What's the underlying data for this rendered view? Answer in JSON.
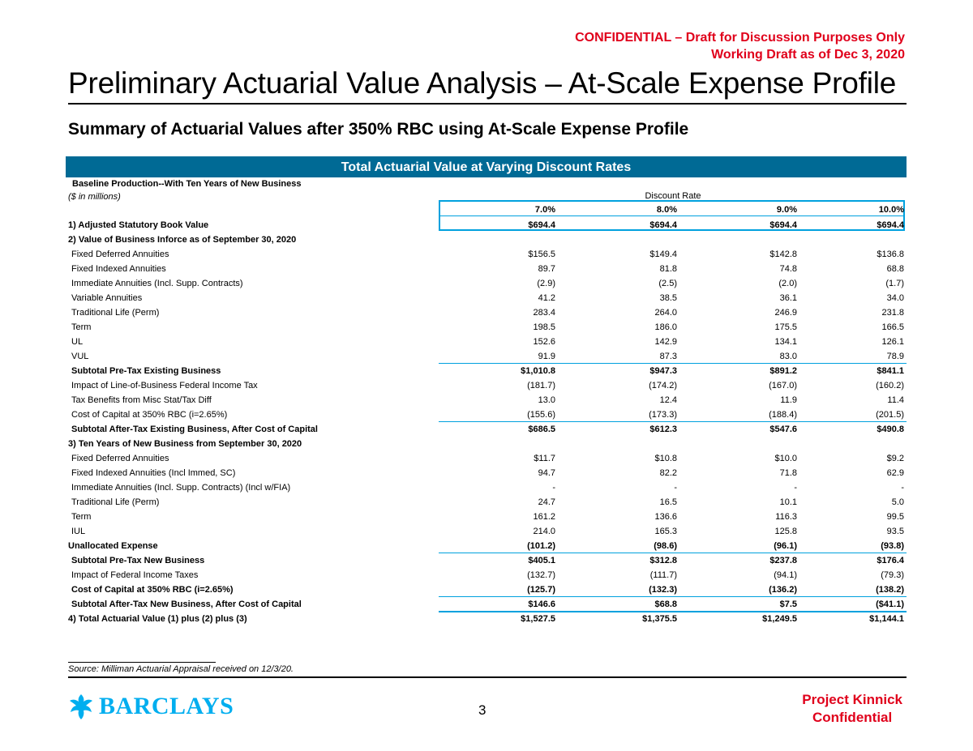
{
  "confidential": {
    "line1": "CONFIDENTIAL – Draft for Discussion Purposes Only",
    "line2": "Working Draft as of Dec 3, 2020"
  },
  "title": "Preliminary Actuarial Value Analysis – At-Scale Expense Profile",
  "subtitle": "Summary of Actuarial Values after 350% RBC using At-Scale Expense Profile",
  "banner": "Total Actuarial Value at Varying Discount Rates",
  "table": {
    "header_line1": "Baseline Production--With Ten Years of New Business",
    "header_line2": "($ in millions)",
    "discount_label": "Discount Rate",
    "rates": [
      "7.0%",
      "8.0%",
      "9.0%",
      "10.0%"
    ],
    "rows": [
      {
        "label": "1) Adjusted Statutory Book Value",
        "values": [
          "$694.4",
          "$694.4",
          "$694.4",
          "$694.4"
        ],
        "bold": true
      },
      {
        "label": "2) Value of Business Inforce as of September 30, 2020",
        "values": [
          "",
          "",
          "",
          ""
        ],
        "bold": true
      },
      {
        "label": "Fixed Deferred Annuities",
        "values": [
          "$156.5",
          "$149.4",
          "$142.8",
          "$136.8"
        ]
      },
      {
        "label": "Fixed Indexed Annuities",
        "values": [
          "89.7",
          "81.8",
          "74.8",
          "68.8"
        ]
      },
      {
        "label": "Immediate Annuities (Incl. Supp. Contracts)",
        "values": [
          "(2.9)",
          "(2.5)",
          "(2.0)",
          "(1.7)"
        ]
      },
      {
        "label": "Variable Annuities",
        "values": [
          "41.2",
          "38.5",
          "36.1",
          "34.0"
        ]
      },
      {
        "label": "Traditional Life (Perm)",
        "values": [
          "283.4",
          "264.0",
          "246.9",
          "231.8"
        ]
      },
      {
        "label": "Term",
        "values": [
          "198.5",
          "186.0",
          "175.5",
          "166.5"
        ]
      },
      {
        "label": "UL",
        "values": [
          "152.6",
          "142.9",
          "134.1",
          "126.1"
        ]
      },
      {
        "label": "VUL",
        "values": [
          "91.9",
          "87.3",
          "83.0",
          "78.9"
        ]
      },
      {
        "label": "Subtotal Pre-Tax Existing Business",
        "values": [
          "$1,010.8",
          "$947.3",
          "$891.2",
          "$841.1"
        ],
        "bold": true
      },
      {
        "label": "Impact of Line-of-Business Federal Income Tax",
        "values": [
          "(181.7)",
          "(174.2)",
          "(167.0)",
          "(160.2)"
        ]
      },
      {
        "label": "Tax Benefits from Misc Stat/Tax Diff",
        "values": [
          "13.0",
          "12.4",
          "11.9",
          "11.4"
        ]
      },
      {
        "label": "Cost of Capital at 350% RBC (i=2.65%)",
        "values": [
          "(155.6)",
          "(173.3)",
          "(188.4)",
          "(201.5)"
        ]
      },
      {
        "label": "Subtotal After-Tax Existing Business, After Cost of Capital",
        "values": [
          "$686.5",
          "$612.3",
          "$547.6",
          "$490.8"
        ],
        "bold": true
      },
      {
        "label": "3) Ten Years of New Business from September 30, 2020",
        "values": [
          "",
          "",
          "",
          ""
        ],
        "bold": true
      },
      {
        "label": "Fixed Deferred Annuities",
        "values": [
          "$11.7",
          "$10.8",
          "$10.0",
          "$9.2"
        ]
      },
      {
        "label": "Fixed Indexed Annuities (Incl Immed, SC)",
        "values": [
          "94.7",
          "82.2",
          "71.8",
          "62.9"
        ]
      },
      {
        "label": "Immediate Annuities (Incl. Supp. Contracts) (Incl w/FIA)",
        "values": [
          "-",
          "-",
          "-",
          "-"
        ]
      },
      {
        "label": "Traditional Life (Perm)",
        "values": [
          "24.7",
          "16.5",
          "10.1",
          "5.0"
        ]
      },
      {
        "label": "Term",
        "values": [
          "161.2",
          "136.6",
          "116.3",
          "99.5"
        ]
      },
      {
        "label": "IUL",
        "values": [
          "214.0",
          "165.3",
          "125.8",
          "93.5"
        ]
      },
      {
        "label": "Unallocated Expense",
        "values": [
          "(101.2)",
          "(98.6)",
          "(96.1)",
          "(93.8)"
        ],
        "bold": true
      },
      {
        "label": "Subtotal Pre-Tax New Business",
        "values": [
          "$405.1",
          "$312.8",
          "$237.8",
          "$176.4"
        ],
        "bold": true
      },
      {
        "label": "Impact of Federal Income Taxes",
        "values": [
          "(132.7)",
          "(111.7)",
          "(94.1)",
          "(79.3)"
        ]
      },
      {
        "label": "Cost of Capital at 350% RBC (i=2.65%)",
        "values": [
          "(125.7)",
          "(132.3)",
          "(136.2)",
          "(138.2)"
        ],
        "bold": true
      },
      {
        "label": "Subtotal After-Tax New Business, After Cost of Capital",
        "values": [
          "$146.6",
          "$68.8",
          "$7.5",
          "($41.1)"
        ],
        "bold": true
      },
      {
        "label": "4) Total Actuarial Value (1) plus (2) plus (3)",
        "values": [
          "$1,527.5",
          "$1,375.5",
          "$1,249.5",
          "$1,144.1"
        ],
        "bold": true
      }
    ]
  },
  "source": "Source: Milliman Actuarial Appraisal received on 12/3/20.",
  "logo_text": "BARCLAYS",
  "page_number": "3",
  "footer": {
    "line1": "Project Kinnick",
    "line2": "Confidential"
  },
  "colors": {
    "banner": "#006a95",
    "accent": "#00a1de",
    "confidential": "#e0001b",
    "logo": "#00aeef"
  }
}
